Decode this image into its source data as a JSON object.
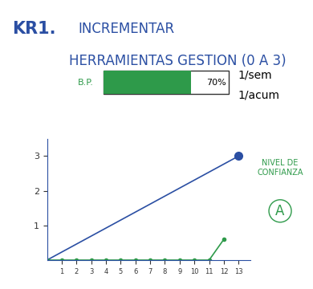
{
  "chart_data": {
    "type": "line",
    "title": "INCREMENTAR",
    "subtitle": "HERRAMIENTAS GESTION (0 A 3)",
    "series": [
      {
        "color": "#2b4fa3",
        "marker": "end",
        "line_style": "solid",
        "x": [
          0,
          13
        ],
        "values": [
          0,
          3
        ]
      },
      {
        "color": "#2e9a4a",
        "marker": "o",
        "line_style": "solid",
        "x": [
          0,
          1,
          2,
          3,
          4,
          5,
          6,
          7,
          8,
          9,
          10,
          11,
          12
        ],
        "values": [
          0,
          0,
          0,
          0,
          0,
          0,
          0,
          0,
          0,
          0,
          0,
          0,
          0.6
        ]
      }
    ],
    "xlim": [
      0,
      13.8
    ],
    "xticks": [
      1,
      2,
      3,
      4,
      5,
      6,
      7,
      8,
      9,
      10,
      11,
      12,
      13
    ],
    "ylim": [
      0,
      3.5
    ],
    "yticks": [
      1,
      2,
      3
    ],
    "grid": false
  },
  "header": {
    "id": "KR1."
  },
  "progress_bar": {
    "label": "B.P.",
    "value": 70,
    "value_label": "70%",
    "color": "#2e9a4a"
  },
  "notes": [
    "1/sem",
    "1/acum"
  ],
  "confidence": {
    "label": "NIVEL DE CONFIANZA",
    "level": "A",
    "color": "#2e9a4a"
  }
}
